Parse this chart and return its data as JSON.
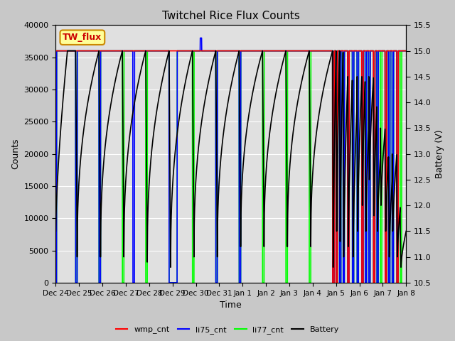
{
  "title": "Twitchel Rice Flux Counts",
  "xlabel": "Time",
  "ylabel_left": "Counts",
  "ylabel_right": "Battery (V)",
  "ylim_left": [
    0,
    40000
  ],
  "ylim_right": [
    10.5,
    15.5
  ],
  "legend_entries": [
    "wmp_cnt",
    "li75_cnt",
    "li77_cnt",
    "Battery"
  ],
  "legend_colors": [
    "red",
    "blue",
    "lime",
    "black"
  ],
  "text_box_label": "TW_flux",
  "text_box_color": "#ffff99",
  "text_box_edge": "#cc8800",
  "text_box_text_color": "#cc0000",
  "bg_color": "#c8c8c8",
  "plot_bg_color": "#e0e0e0",
  "grid_color": "#ffffff",
  "wmp_color": "red",
  "li75_color": "blue",
  "li77_color": "#00ff00",
  "battery_color": "black"
}
